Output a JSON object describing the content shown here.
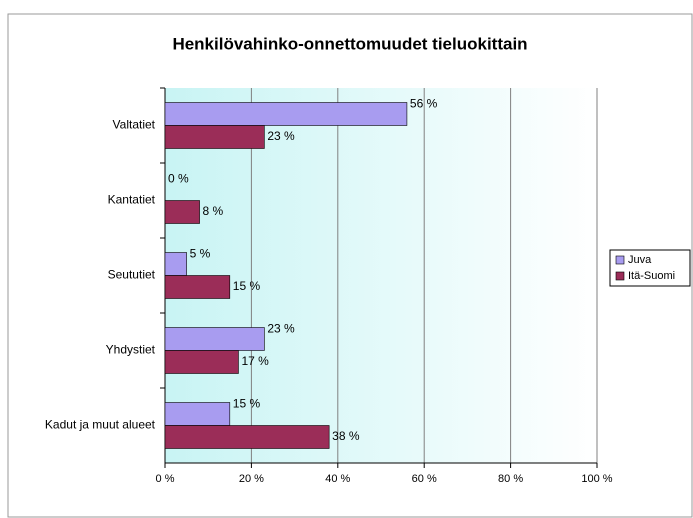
{
  "chart_data": {
    "type": "hbar",
    "title": "Henkilövahinko-onnettomuudet tieluokittain",
    "categories": [
      "Valtatiet",
      "Kantatiet",
      "Seututiet",
      "Yhdystiet",
      "Kadut ja muut alueet"
    ],
    "series": [
      {
        "name": "Juva",
        "color": "#a89cf0",
        "values": [
          56,
          0,
          5,
          23,
          15
        ],
        "value_labels": [
          "56 %",
          "0 %",
          "5 %",
          "23 %",
          "15 %"
        ]
      },
      {
        "name": "Itä-Suomi",
        "color": "#9b2d58",
        "values": [
          23,
          8,
          15,
          17,
          38
        ],
        "value_labels": [
          "23 %",
          "8 %",
          "15 %",
          "17 %",
          "38 %"
        ]
      }
    ],
    "xlim": [
      0,
      100
    ],
    "xticks": [
      {
        "value": 0,
        "label": "0 %"
      },
      {
        "value": 20,
        "label": "20 %"
      },
      {
        "value": 40,
        "label": "40 %"
      },
      {
        "value": 60,
        "label": "60 %"
      },
      {
        "value": 80,
        "label": "80 %"
      },
      {
        "value": 100,
        "label": "100 %"
      }
    ],
    "grid": true,
    "legend": "right"
  }
}
